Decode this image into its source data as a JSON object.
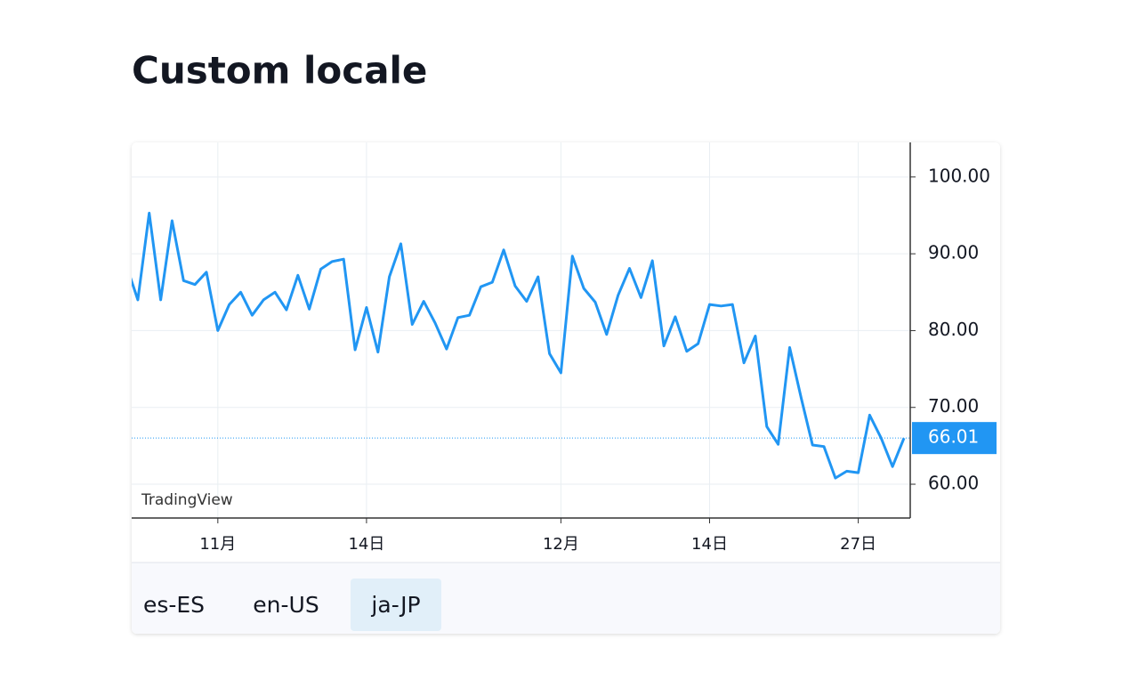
{
  "title": "Custom locale",
  "chart_data": {
    "type": "line",
    "categories": [
      null,
      null,
      null,
      null,
      null,
      null,
      null,
      null,
      "11月",
      null,
      null,
      null,
      null,
      null,
      null,
      null,
      null,
      null,
      null,
      null,
      null,
      "14日",
      null,
      null,
      null,
      null,
      null,
      null,
      null,
      null,
      null,
      null,
      null,
      null,
      null,
      null,
      null,
      null,
      "12月",
      null,
      null,
      null,
      null,
      null,
      null,
      null,
      null,
      null,
      null,
      null,
      null,
      "14日",
      null,
      null,
      null,
      null,
      null,
      null,
      null,
      null,
      null,
      null,
      null,
      null,
      "27日",
      null,
      null,
      null,
      null
    ],
    "series": [
      {
        "color": "#2196f3",
        "values": [
          88.5,
          84.0,
          95.3,
          84.0,
          94.3,
          86.5,
          86.0,
          87.6,
          80.0,
          83.4,
          85.0,
          82.0,
          84.0,
          85.0,
          82.7,
          87.2,
          82.8,
          88.0,
          89.0,
          89.3,
          77.5,
          83.0,
          77.2,
          87.0,
          91.3,
          80.8,
          83.8,
          81.0,
          77.6,
          81.7,
          82.0,
          85.7,
          86.3,
          90.5,
          85.8,
          83.8,
          87.0,
          77.0,
          74.5,
          89.7,
          85.5,
          83.7,
          79.5,
          84.6,
          88.1,
          84.3,
          89.1,
          78.0,
          81.8,
          77.3,
          78.3,
          83.4,
          83.2,
          83.4,
          75.8,
          79.3,
          67.5,
          65.2,
          77.8,
          71.3,
          65.1,
          64.9,
          60.8,
          61.7,
          61.5,
          69.0,
          66.0,
          62.3,
          66.01
        ]
      }
    ],
    "ylim": [
      55.6,
      104.5
    ],
    "yticks": [
      {
        "value": 60,
        "label": "60.00"
      },
      {
        "value": 70,
        "label": "70.00"
      },
      {
        "value": 80,
        "label": "80.00"
      },
      {
        "value": 90,
        "label": "90.00"
      },
      {
        "value": 100,
        "label": "100.00"
      }
    ],
    "grid": true,
    "watermark": "TradingView"
  },
  "locales": [
    "es-ES",
    "en-US",
    "ja-JP"
  ],
  "selected_locale": 2
}
